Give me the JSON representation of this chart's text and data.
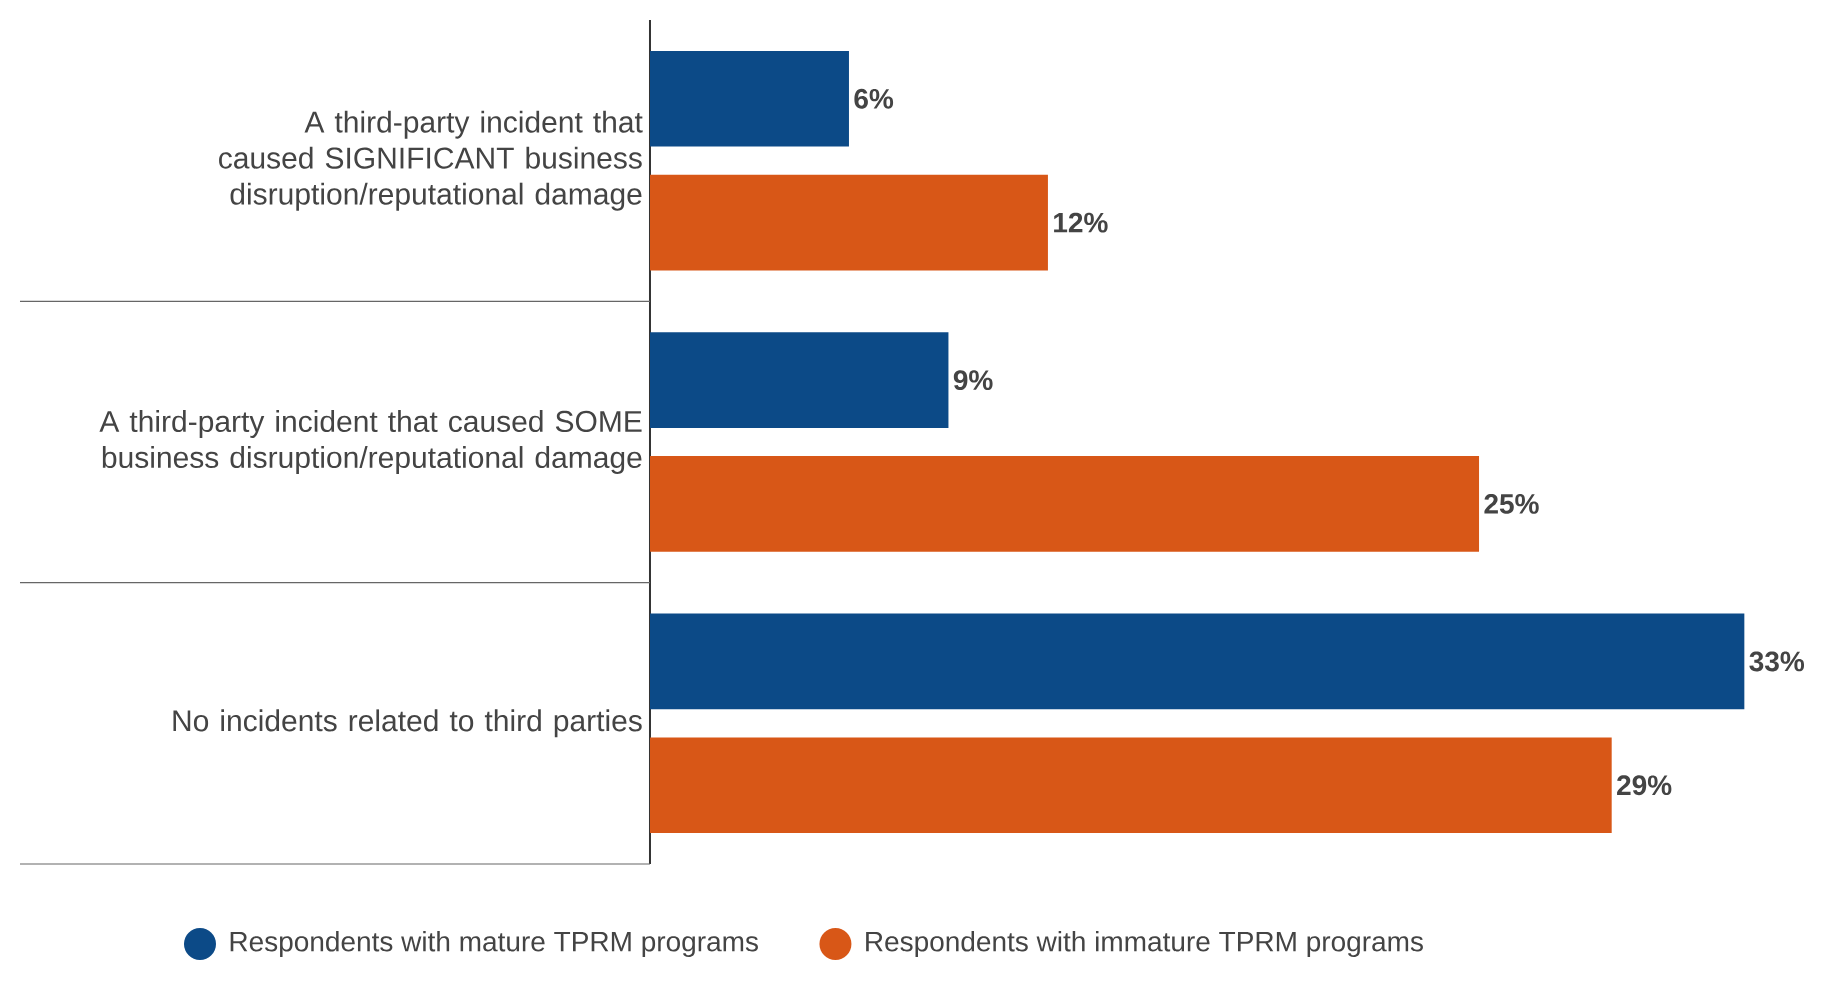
{
  "chart_data": {
    "type": "bar",
    "orientation": "horizontal",
    "categories": [
      "A third-party incident that caused SIGNIFICANT business disruption/reputational damage",
      "A third-party incident that caused SOME business disruption/reputational damage",
      "No incidents related to third parties"
    ],
    "series": [
      {
        "name": "Respondents with mature TPRM programs",
        "color": "#0c4a87",
        "values": [
          6,
          9,
          33
        ],
        "value_labels": [
          "6%",
          "9%",
          "33%"
        ]
      },
      {
        "name": "Respondents with immature TPRM programs",
        "color": "#d85717",
        "values": [
          12,
          25,
          29
        ],
        "value_labels": [
          "12%",
          "25%",
          "29%"
        ]
      }
    ],
    "legend": "bottom"
  }
}
